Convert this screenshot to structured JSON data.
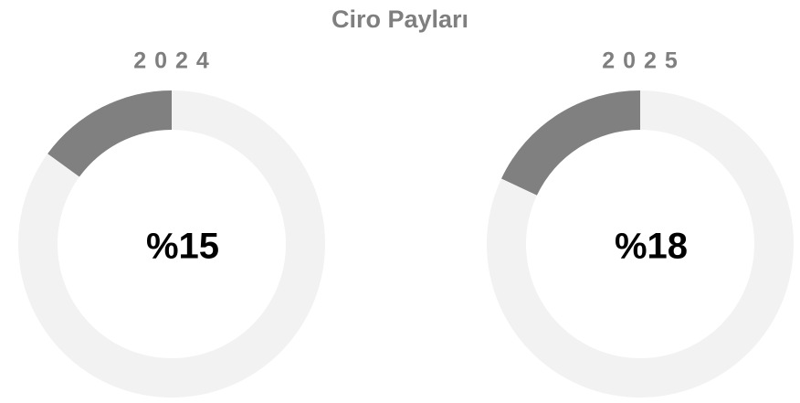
{
  "title": "Ciro Payları",
  "chart_data": [
    {
      "type": "pie",
      "donut": true,
      "title": "2024",
      "categories": [
        null,
        null
      ],
      "values": [
        15,
        85
      ],
      "value_labels": [
        "%15",
        null
      ],
      "colors": [
        "#808080",
        "#f2f2f2"
      ]
    },
    {
      "type": "pie",
      "donut": true,
      "title": "2025",
      "categories": [
        null,
        null
      ],
      "values": [
        18,
        82
      ],
      "value_labels": [
        "%18",
        null
      ],
      "colors": [
        "#808080",
        "#f2f2f2"
      ]
    }
  ]
}
